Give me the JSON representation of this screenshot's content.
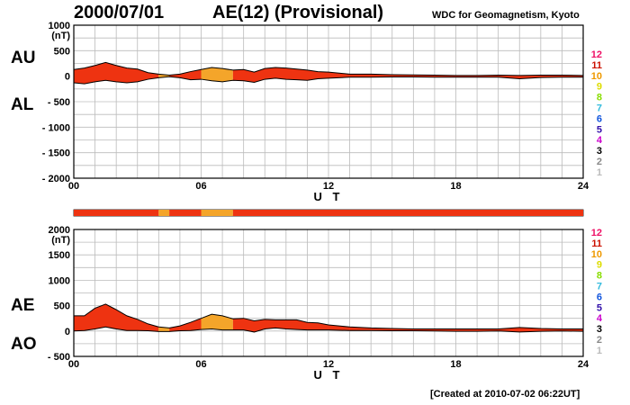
{
  "header": {
    "date": "2000/07/01",
    "title": "AE(12) (Provisional)",
    "source": "WDC for Geomagnetism, Kyoto",
    "created": "[Created at 2010-07-02 06:22UT]"
  },
  "colors": {
    "series12": "#ee1166",
    "series11": "#cc1100",
    "series10": "#ee9900",
    "series9": "#dddd00",
    "series8": "#88dd00",
    "series7": "#33bbdd",
    "series6": "#1155dd",
    "series5": "#3311aa",
    "series4": "#cc00cc",
    "series3": "#000000",
    "series2": "#888888",
    "series1": "#bbbbbb",
    "fill_red": "#ee3311",
    "fill_orange": "#f4a52a",
    "grid": "#bbbbbb"
  },
  "chart_data": [
    {
      "type": "area",
      "panel": "AU/AL",
      "left_labels": [
        "AU",
        "AL"
      ],
      "xlabel": "U T",
      "xticks": [
        "00",
        "06",
        "12",
        "18",
        "24"
      ],
      "xlim": [
        0,
        24
      ],
      "ylim": [
        -2000,
        1000
      ],
      "yunit": "(nT)",
      "yticks": [
        "1000",
        "500",
        "0",
        "- 500",
        "- 1000",
        "- 1500",
        "- 2000"
      ],
      "ytick_values": [
        1000,
        500,
        0,
        -500,
        -1000,
        -1500,
        -2000
      ],
      "grid": true,
      "legend": [
        "12",
        "11",
        "10",
        "9",
        "8",
        "7",
        "6",
        "5",
        "4",
        "3",
        "2",
        "1"
      ],
      "legend_placement": "right",
      "x": [
        0,
        0.5,
        1,
        1.5,
        2,
        2.5,
        3,
        3.5,
        4,
        4.5,
        5,
        5.5,
        6,
        6.5,
        7,
        7.5,
        8,
        8.5,
        9,
        9.5,
        10,
        10.5,
        11,
        11.5,
        12,
        13,
        14,
        15,
        16,
        17,
        18,
        19,
        20,
        21,
        22,
        23,
        24
      ],
      "upper": [
        130,
        160,
        210,
        270,
        210,
        160,
        140,
        70,
        40,
        20,
        40,
        90,
        130,
        170,
        150,
        120,
        130,
        80,
        150,
        170,
        160,
        140,
        120,
        90,
        80,
        40,
        40,
        30,
        25,
        20,
        15,
        15,
        20,
        15,
        20,
        20,
        15
      ],
      "lower": [
        -130,
        -150,
        -110,
        -80,
        -110,
        -130,
        -110,
        -60,
        -30,
        -10,
        -30,
        -70,
        -60,
        -90,
        -110,
        -80,
        -90,
        -120,
        -60,
        -40,
        -60,
        -70,
        -80,
        -50,
        -40,
        -20,
        -20,
        -15,
        -15,
        -20,
        -20,
        -20,
        -20,
        -50,
        -25,
        -20,
        -20
      ],
      "color_bands": [
        {
          "from": 0,
          "to": 4,
          "color": "red"
        },
        {
          "from": 4,
          "to": 4.5,
          "color": "orange"
        },
        {
          "from": 4.5,
          "to": 6,
          "color": "red"
        },
        {
          "from": 6,
          "to": 7.5,
          "color": "orange"
        },
        {
          "from": 7.5,
          "to": 24,
          "color": "red"
        }
      ]
    },
    {
      "type": "area",
      "panel": "AE/AO",
      "left_labels": [
        "AE",
        "AO"
      ],
      "xlabel": "U T",
      "xticks": [
        "00",
        "06",
        "12",
        "18",
        "24"
      ],
      "xlim": [
        0,
        24
      ],
      "ylim": [
        -500,
        2000
      ],
      "yunit": "(nT)",
      "yticks": [
        "2000",
        "1500",
        "1000",
        "500",
        "0",
        "- 500"
      ],
      "ytick_values": [
        2000,
        1500,
        1000,
        500,
        0,
        -500
      ],
      "grid": true,
      "legend": [
        "12",
        "11",
        "10",
        "9",
        "8",
        "7",
        "6",
        "5",
        "4",
        "3",
        "2",
        "1"
      ],
      "legend_placement": "right",
      "x": [
        0,
        0.5,
        1,
        1.5,
        2,
        2.5,
        3,
        3.5,
        4,
        4.5,
        5,
        5.5,
        6,
        6.5,
        7,
        7.5,
        8,
        8.5,
        9,
        9.5,
        10,
        10.5,
        11,
        11.5,
        12,
        13,
        14,
        15,
        16,
        17,
        18,
        19,
        20,
        21,
        22,
        23,
        24
      ],
      "upper": [
        300,
        300,
        450,
        530,
        420,
        300,
        230,
        140,
        80,
        60,
        100,
        170,
        250,
        330,
        300,
        240,
        250,
        200,
        230,
        220,
        220,
        220,
        170,
        160,
        120,
        80,
        60,
        50,
        40,
        40,
        40,
        40,
        40,
        70,
        50,
        40,
        40
      ],
      "lower": [
        0,
        10,
        40,
        80,
        40,
        10,
        10,
        5,
        -10,
        -10,
        5,
        10,
        30,
        40,
        20,
        20,
        20,
        -20,
        40,
        60,
        40,
        30,
        20,
        20,
        20,
        10,
        10,
        5,
        5,
        0,
        -5,
        -5,
        0,
        -20,
        -5,
        0,
        -5
      ],
      "color_bands": [
        {
          "from": 0,
          "to": 4,
          "color": "red"
        },
        {
          "from": 4,
          "to": 4.5,
          "color": "orange"
        },
        {
          "from": 4.5,
          "to": 6,
          "color": "red"
        },
        {
          "from": 6,
          "to": 7.5,
          "color": "orange"
        },
        {
          "from": 7.5,
          "to": 24,
          "color": "red"
        }
      ]
    }
  ],
  "status_bar": [
    {
      "from": 0,
      "to": 4,
      "color": "red"
    },
    {
      "from": 4,
      "to": 4.5,
      "color": "orange"
    },
    {
      "from": 4.5,
      "to": 6,
      "color": "red"
    },
    {
      "from": 6,
      "to": 7.5,
      "color": "orange"
    },
    {
      "from": 7.5,
      "to": 24,
      "color": "red"
    }
  ]
}
